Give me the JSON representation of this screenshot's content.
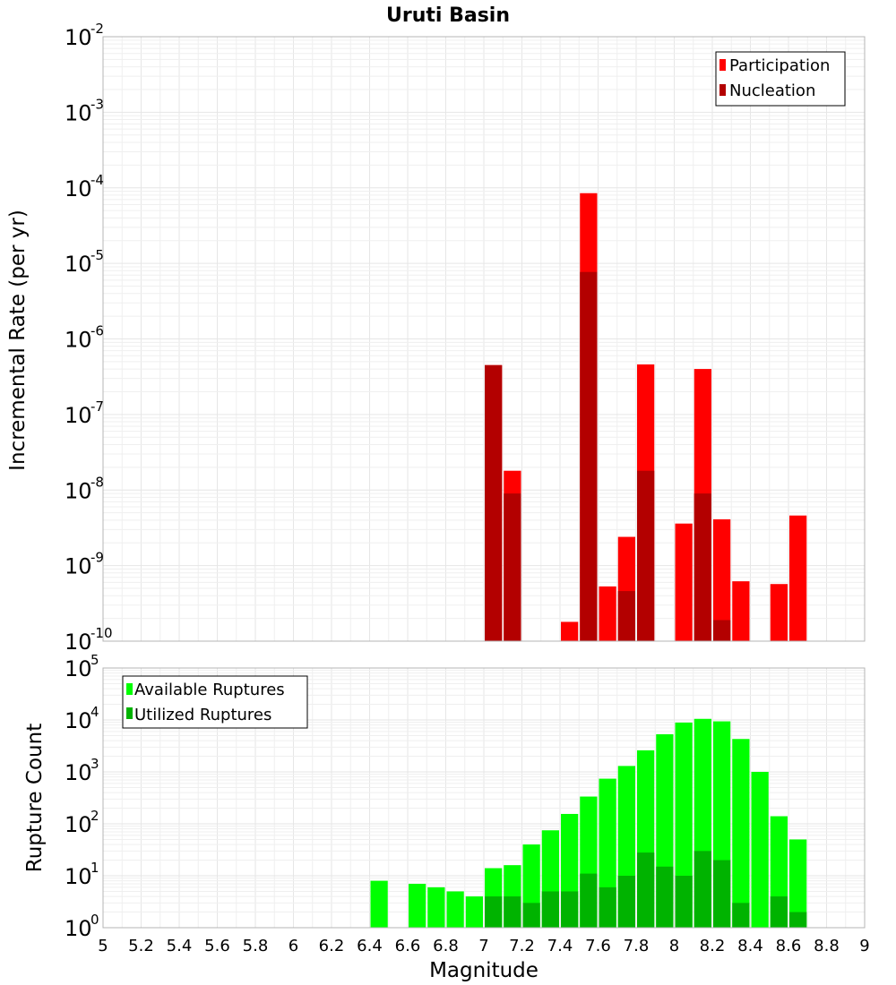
{
  "chart_data": [
    {
      "type": "bar",
      "title": "Uruti Basin",
      "xlabel": "",
      "ylabel": "Incremental Rate (per yr)",
      "yscale": "log",
      "ylim": [
        1e-10,
        0.01
      ],
      "xlim": [
        5,
        9
      ],
      "ytick_exponents": [
        "-2",
        "-3",
        "-4",
        "-5",
        "-6",
        "-7",
        "-8",
        "-9",
        "-10"
      ],
      "grid": true,
      "legend_position": "top-right",
      "series": [
        {
          "name": "Participation",
          "color": "#ff0000",
          "x": [
            7.05,
            7.15,
            7.45,
            7.55,
            7.65,
            7.75,
            7.85,
            8.05,
            8.15,
            8.25,
            8.35,
            8.55,
            8.65
          ],
          "values": [
            4.5e-07,
            1.8e-08,
            1.8e-10,
            8.5e-05,
            5.3e-10,
            2.4e-09,
            4.6e-07,
            3.6e-09,
            4e-07,
            4.1e-09,
            6.2e-10,
            5.7e-10,
            4.6e-09
          ]
        },
        {
          "name": "Nucleation",
          "color": "#b30000",
          "x": [
            7.05,
            7.15,
            7.55,
            7.75,
            7.85,
            8.15,
            8.25
          ],
          "values": [
            4.5e-07,
            9e-09,
            7.7e-06,
            4.6e-10,
            1.8e-08,
            9e-09,
            1.9e-10
          ]
        }
      ]
    },
    {
      "type": "bar",
      "title": "",
      "xlabel": "Magnitude",
      "ylabel": "Rupture Count",
      "yscale": "log",
      "ylim": [
        1,
        100000
      ],
      "xlim": [
        5,
        9
      ],
      "ytick_exponents": [
        "5",
        "4",
        "3",
        "2",
        "1",
        "0"
      ],
      "x_ticks": [
        "5",
        "5.2",
        "5.4",
        "5.6",
        "5.8",
        "6",
        "6.2",
        "6.4",
        "6.6",
        "6.8",
        "7",
        "7.2",
        "7.4",
        "7.6",
        "7.8",
        "8",
        "8.2",
        "8.4",
        "8.6",
        "8.8",
        "9"
      ],
      "grid": true,
      "legend_position": "top-left",
      "series": [
        {
          "name": "Available Ruptures",
          "color": "#00ff00",
          "x": [
            6.45,
            6.65,
            6.75,
            6.85,
            6.95,
            7.05,
            7.15,
            7.25,
            7.35,
            7.45,
            7.55,
            7.65,
            7.75,
            7.85,
            7.95,
            8.05,
            8.15,
            8.25,
            8.35,
            8.45,
            8.55,
            8.65
          ],
          "values": [
            8,
            7,
            6,
            5,
            4,
            14,
            16,
            40,
            75,
            155,
            335,
            740,
            1300,
            2600,
            5300,
            8900,
            10500,
            9400,
            4300,
            1000,
            140,
            50
          ]
        },
        {
          "name": "Utilized Ruptures",
          "color": "#00b300",
          "x": [
            7.05,
            7.15,
            7.25,
            7.35,
            7.45,
            7.55,
            7.65,
            7.75,
            7.85,
            7.95,
            8.05,
            8.15,
            8.25,
            8.35,
            8.55,
            8.65
          ],
          "values": [
            4,
            4,
            3,
            5,
            5,
            11,
            6,
            10,
            28,
            15,
            10,
            30,
            20,
            3,
            4,
            2
          ]
        }
      ]
    }
  ]
}
